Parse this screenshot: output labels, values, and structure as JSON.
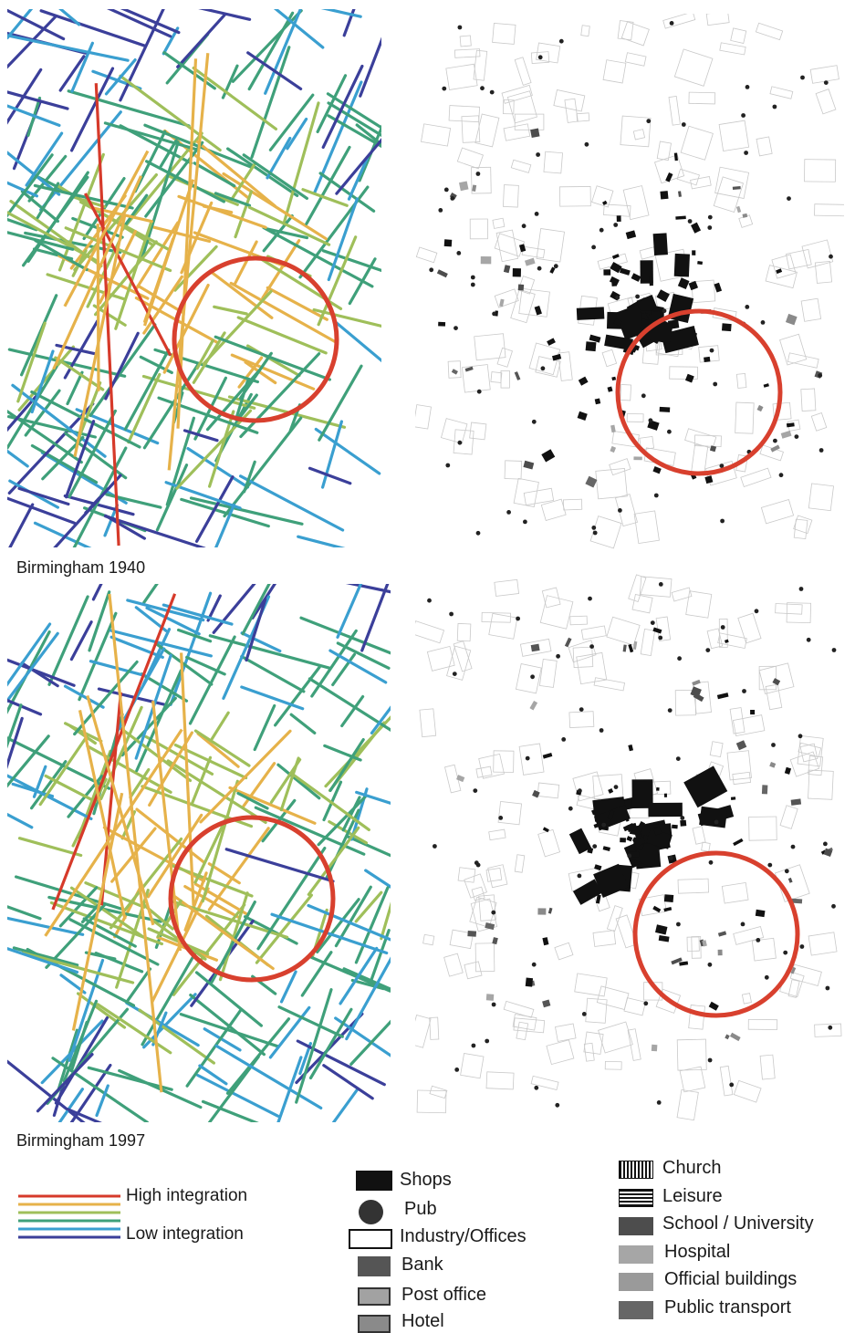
{
  "captions": {
    "top": "Birmingham 1940",
    "bottom": "Birmingham 1997"
  },
  "integration_legend": {
    "high": "High integration",
    "low": "Low integration",
    "colors": [
      "#d63a2a",
      "#e6b24a",
      "#9fbf5a",
      "#3fa07a",
      "#3a9fd0",
      "#3b3f9a"
    ]
  },
  "land_use_legend": {
    "col1": {
      "shops": "Shops",
      "pub": "Pub",
      "industry": "Industry/Offices",
      "bank": "Bank",
      "post": "Post office",
      "hotel": "Hotel"
    },
    "col2": {
      "church": "Church",
      "leisure": "Leisure",
      "school": "School / University",
      "hospital": "Hospital",
      "official": "Official buildings",
      "transport": "Public transport"
    }
  },
  "colors": {
    "circle": "#d8402e",
    "shops": "#111111",
    "bank": "#555555",
    "post": "#999999",
    "hotel": "#8a8a8a",
    "school": "#4d4d4d",
    "hospital": "#a6a6a6",
    "official": "#9a9a9a",
    "transport": "#666666"
  }
}
